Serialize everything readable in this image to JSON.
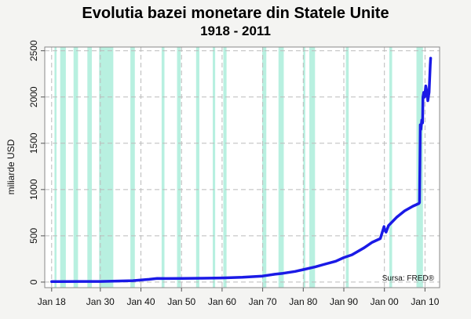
{
  "chart_data": {
    "type": "line",
    "title": "Evolutia bazei monetare din Statele Unite",
    "subtitle": "1918 - 2011",
    "xlabel": "",
    "ylabel": "miliarde USD",
    "source": "Sursa: FRED®",
    "xlim": [
      1916.3,
      2013.6
    ],
    "ylim": [
      -60,
      2540
    ],
    "x_ticks": [
      1918,
      1930,
      1940,
      1950,
      1960,
      1970,
      1980,
      1990,
      2000,
      2010
    ],
    "x_tick_labels": [
      "Jan 18",
      "Jan 30",
      "Jan 40",
      "Jan 50",
      "Jan 60",
      "Jan 70",
      "Jan 80",
      "Jan 90",
      "Jan 00",
      "Jan 10"
    ],
    "y_ticks": [
      0,
      500,
      1000,
      1500,
      2000,
      2500
    ],
    "y_tick_labels": [
      "0",
      "500",
      "1000",
      "1500",
      "2000",
      "2500"
    ],
    "grid": true,
    "colors": {
      "line": "#1a1ae6",
      "recession": "#b8f0e0",
      "grid": "#bbbbbb",
      "frame": "#888888"
    },
    "recessions": [
      [
        1918.7,
        1919.2
      ],
      [
        1920.1,
        1921.5
      ],
      [
        1923.4,
        1924.5
      ],
      [
        1926.8,
        1927.9
      ],
      [
        1929.7,
        1933.2
      ],
      [
        1937.4,
        1938.5
      ],
      [
        1945.1,
        1945.8
      ],
      [
        1948.9,
        1949.8
      ],
      [
        1953.6,
        1954.4
      ],
      [
        1957.7,
        1958.3
      ],
      [
        1960.3,
        1961.1
      ],
      [
        1969.9,
        1970.9
      ],
      [
        1973.9,
        1975.2
      ],
      [
        1980.0,
        1980.5
      ],
      [
        1981.5,
        1982.9
      ],
      [
        1990.5,
        1991.2
      ],
      [
        2001.2,
        2001.9
      ],
      [
        2007.9,
        2009.5
      ]
    ],
    "series": [
      {
        "x": [
          1918,
          1920,
          1925,
          1930,
          1935,
          1938,
          1940,
          1942,
          1944,
          1946,
          1950,
          1955,
          1960,
          1965,
          1970,
          1973,
          1975,
          1978,
          1980,
          1983,
          1985,
          1988,
          1990,
          1992,
          1995,
          1997,
          1999,
          1999.9,
          2000.1,
          2000.4,
          2001,
          2003,
          2005,
          2007,
          2008.5,
          2008.65,
          2008.75,
          2008.85,
          2009,
          2009.2,
          2009.4,
          2009.5,
          2009.7,
          2009.9,
          2010.2,
          2010.5,
          2010.7,
          2011,
          2011.3,
          2011.4
        ],
        "values": [
          5,
          6,
          7,
          7,
          12,
          15,
          22,
          30,
          40,
          38,
          39,
          42,
          45,
          52,
          65,
          85,
          95,
          115,
          135,
          165,
          190,
          225,
          265,
          295,
          370,
          430,
          470,
          600,
          560,
          540,
          610,
          700,
          770,
          820,
          850,
          860,
          1250,
          1700,
          1650,
          1750,
          1720,
          2000,
          2050,
          2000,
          2120,
          2050,
          1960,
          2050,
          2350,
          2420
        ]
      }
    ]
  }
}
